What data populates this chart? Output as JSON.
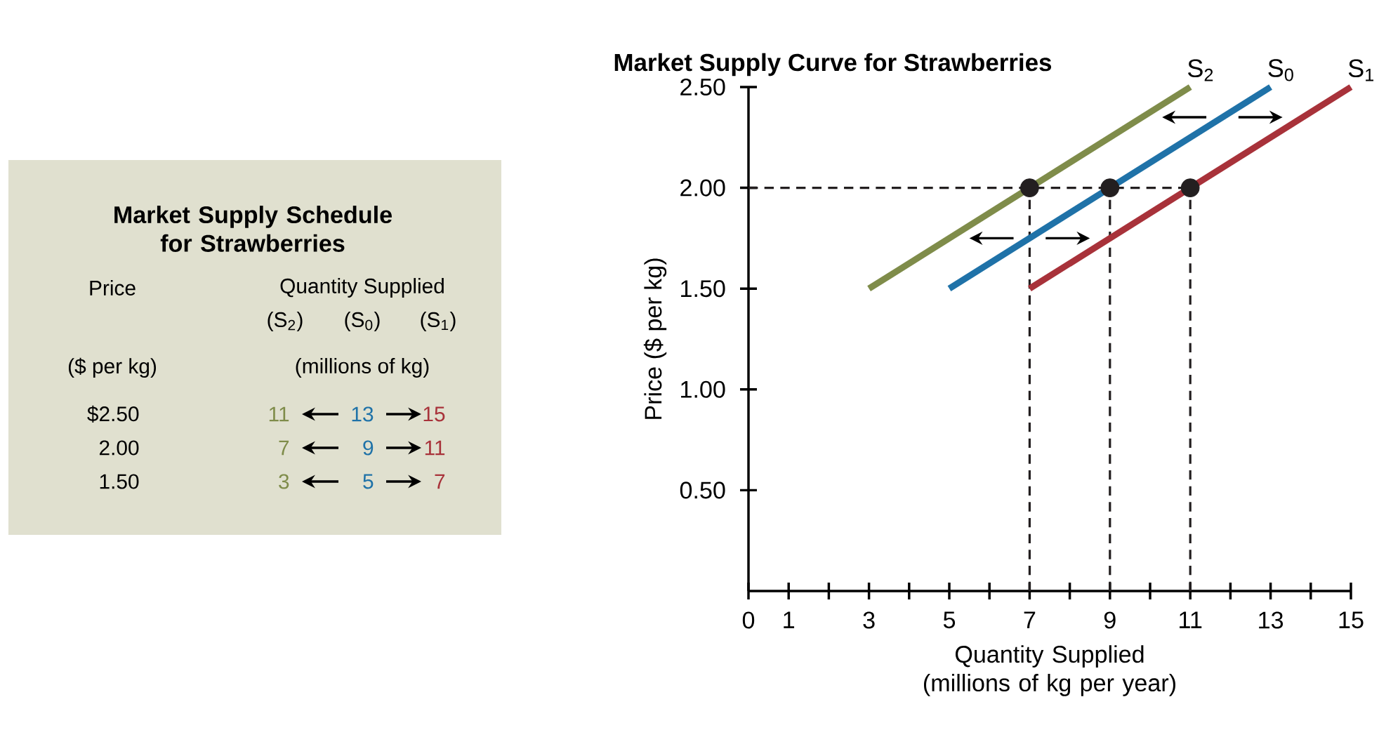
{
  "chart_data": [
    {
      "type": "other",
      "title": "Market Supply Schedule for Strawberries",
      "annotations": [
        "Price",
        "Quantity Supplied",
        "(S$_{2}$)",
        "(S$_{0}$)",
        "(S$_{1}$)",
        "($ per kg)",
        "(millions of kg)",
        "$2.50",
        "2.00",
        "1.50",
        "11",
        "13",
        "15",
        "7",
        "9",
        "11",
        "3",
        "5",
        "7"
      ]
    },
    {
      "type": "line",
      "title": "Market Supply Curve for Strawberries",
      "xlabel": "Quantity Supplied (millions of kg per year)",
      "ylabel": "Price ($ per kg)",
      "xlim": [
        0,
        15
      ],
      "ylim": [
        0,
        2.5
      ],
      "xticks": [
        0,
        1,
        {
          "value": 2,
          "label": null
        },
        3,
        {
          "value": 4,
          "label": null
        },
        5,
        {
          "value": 6,
          "label": null
        },
        7,
        {
          "value": 8,
          "label": null
        },
        9,
        {
          "value": 10,
          "label": null
        },
        11,
        {
          "value": 12,
          "label": null
        },
        13,
        {
          "value": 14,
          "label": null
        },
        15
      ],
      "yticks": [
        {
          "value": 0.5,
          "label": "0.50"
        },
        {
          "value": 1,
          "label": "1.00"
        },
        {
          "value": 1.5,
          "label": "1.50"
        },
        {
          "value": 2,
          "label": "2.00"
        },
        {
          "value": 2.5,
          "label": "2.50"
        }
      ],
      "marker": "none",
      "line_style": "solid",
      "series": [
        {
          "type": "line",
          "color": "#231f20",
          "line_style": "dashed",
          "x": [
            0,
            11
          ],
          "values": [
            2,
            2
          ]
        },
        {
          "type": "line",
          "color": "#231f20",
          "line_style": "dashed",
          "x": [
            7,
            7
          ],
          "values": [
            0,
            2
          ]
        },
        {
          "type": "line",
          "color": "#231f20",
          "line_style": "dashed",
          "x": [
            9,
            9
          ],
          "values": [
            0,
            2
          ]
        },
        {
          "type": "line",
          "color": "#231f20",
          "line_style": "dashed",
          "x": [
            11,
            11
          ],
          "values": [
            0,
            2
          ]
        },
        {
          "type": "line",
          "name": "S$_{2}$",
          "color": "#7f8c4a",
          "x": [
            3,
            11
          ],
          "values": [
            1.5,
            2.5
          ]
        },
        {
          "type": "line",
          "name": "S$_{0}$",
          "color": "#1f72a8",
          "x": [
            5,
            13
          ],
          "values": [
            1.5,
            2.5
          ]
        },
        {
          "type": "line",
          "name": "S$_{1}$",
          "color": "#a8323a",
          "x": [
            7,
            15
          ],
          "values": [
            1.5,
            2.5
          ]
        },
        {
          "type": "scatter",
          "color": "#231f20",
          "marker": "circle",
          "x": [
            7,
            9,
            11
          ],
          "values": [
            2,
            2,
            2
          ]
        }
      ]
    }
  ]
}
